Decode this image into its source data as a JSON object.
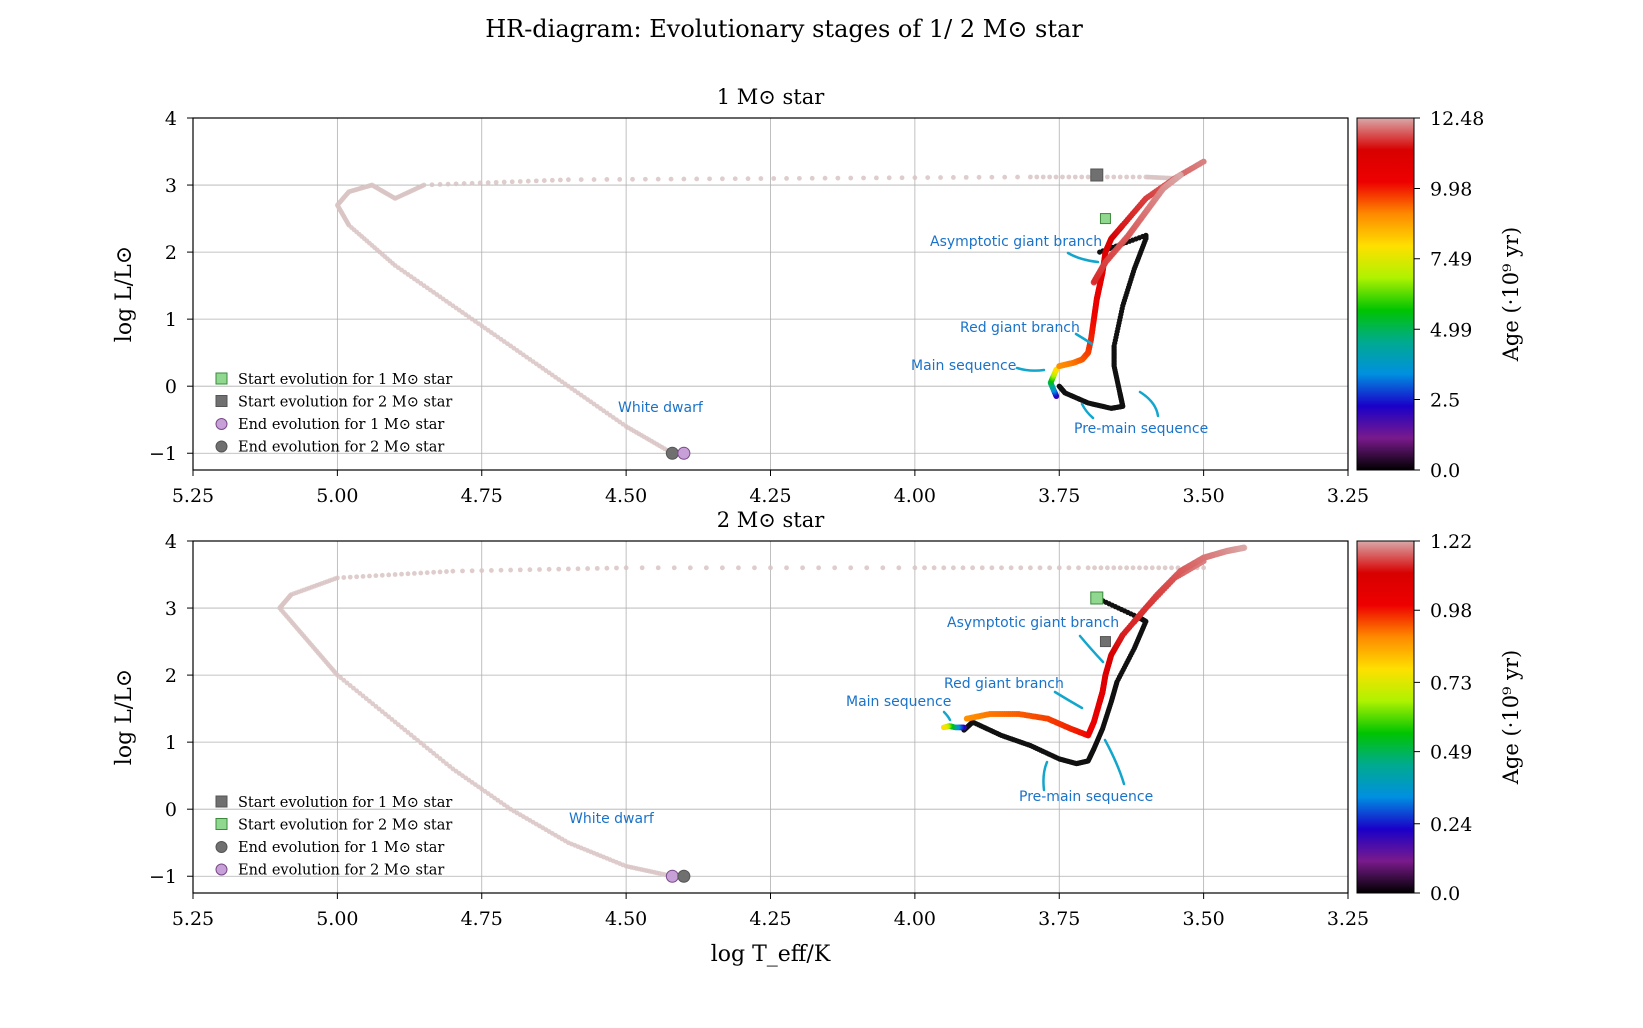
{
  "figure": {
    "suptitle": "HR-diagram: Evolutionary stages of 1/ 2 M⊙ star"
  },
  "colors": {
    "grid": "#b0b0b0",
    "annotation_text": "#1a73c9",
    "annotation_line": "#13a6cc",
    "post_agb_track": "#d9c4c4",
    "colormap": [
      "#000000",
      "#7a1a8c",
      "#1a00c8",
      "#0090e0",
      "#00aa90",
      "#00c400",
      "#aef200",
      "#ffe000",
      "#ff8a00",
      "#ee0000",
      "#d80000",
      "#d9a8a8"
    ]
  },
  "chart_data": [
    {
      "type": "scatter",
      "title": "1 M⊙ star",
      "xlabel": "",
      "ylabel": "log L/L⊙",
      "xlim": [
        5.25,
        3.25
      ],
      "ylim": [
        -1.25,
        4.0
      ],
      "x_ticks": [
        "5.25",
        "5.00",
        "4.75",
        "4.50",
        "4.25",
        "4.00",
        "3.75",
        "3.50",
        "3.25"
      ],
      "y_ticks": [
        "−1",
        "0",
        "1",
        "2",
        "3",
        "4"
      ],
      "grid": true,
      "legend_position": "lower-left",
      "colorbar": {
        "label": "Age (·10⁹ yr)",
        "ticks": [
          "0.0",
          "2.5",
          "4.99",
          "7.49",
          "9.98",
          "12.48"
        ],
        "max": 12.48
      },
      "legend": [
        {
          "label": "Start evolution for 1 M⊙ star",
          "marker": "square",
          "color": "#90d890",
          "edge": "#3a8a3a"
        },
        {
          "label": "Start evolution for 2 M⊙ star",
          "marker": "square",
          "color": "#707070",
          "edge": "#555555"
        },
        {
          "label": "End evolution for 1 M⊙ star",
          "marker": "circle",
          "color": "#c8a0d8",
          "edge": "#7a4a8a"
        },
        {
          "label": "End evolution for 2 M⊙ star",
          "marker": "circle",
          "color": "#707070",
          "edge": "#555555"
        }
      ],
      "annotations": [
        {
          "text": "Asymptotic giant branch"
        },
        {
          "text": "Red giant branch"
        },
        {
          "text": "Main sequence"
        },
        {
          "text": "White dwarf"
        },
        {
          "text": "Pre-main sequence"
        }
      ],
      "markers": {
        "start_1": [
          3.67,
          2.5
        ],
        "start_2": [
          3.685,
          3.15
        ],
        "end_1": [
          4.4,
          -1.0
        ],
        "end_2": [
          4.42,
          -1.0
        ]
      },
      "pre_main_sequence": [
        [
          3.68,
          2.0
        ],
        [
          3.6,
          2.25
        ],
        [
          3.6,
          2.2
        ],
        [
          3.62,
          1.75
        ],
        [
          3.64,
          1.2
        ],
        [
          3.655,
          0.6
        ],
        [
          3.655,
          0.3
        ],
        [
          3.645,
          -0.1
        ],
        [
          3.64,
          -0.3
        ],
        [
          3.66,
          -0.33
        ],
        [
          3.7,
          -0.25
        ],
        [
          3.74,
          -0.1
        ],
        [
          3.75,
          0.0
        ]
      ],
      "main_sequence": [
        [
          3.755,
          -0.15
        ],
        [
          3.76,
          -0.05
        ],
        [
          3.765,
          0.05
        ],
        [
          3.76,
          0.15
        ],
        [
          3.755,
          0.25
        ]
      ],
      "red_giant_branch": [
        [
          3.75,
          0.3
        ],
        [
          3.725,
          0.35
        ],
        [
          3.71,
          0.4
        ],
        [
          3.7,
          0.5
        ],
        [
          3.695,
          0.7
        ],
        [
          3.69,
          1.0
        ],
        [
          3.685,
          1.3
        ],
        [
          3.68,
          1.5
        ],
        [
          3.675,
          1.7
        ],
        [
          3.67,
          2.0
        ],
        [
          3.66,
          2.2
        ],
        [
          3.64,
          2.4
        ],
        [
          3.6,
          2.8
        ],
        [
          3.55,
          3.1
        ],
        [
          3.5,
          3.35
        ]
      ],
      "agb": [
        [
          3.69,
          1.55
        ],
        [
          3.67,
          1.85
        ],
        [
          3.63,
          2.25
        ],
        [
          3.6,
          2.6
        ],
        [
          3.57,
          2.95
        ],
        [
          3.54,
          3.15
        ]
      ],
      "post_agb": [
        [
          3.55,
          3.1
        ],
        [
          3.6,
          3.12
        ],
        [
          3.8,
          3.12
        ],
        [
          4.2,
          3.1
        ],
        [
          4.6,
          3.08
        ],
        [
          4.85,
          3.0
        ],
        [
          4.9,
          2.8
        ],
        [
          4.94,
          3.0
        ],
        [
          4.98,
          2.9
        ],
        [
          5.0,
          2.7
        ],
        [
          4.98,
          2.4
        ],
        [
          4.9,
          1.8
        ],
        [
          4.8,
          1.2
        ],
        [
          4.7,
          0.6
        ],
        [
          4.6,
          0.0
        ],
        [
          4.5,
          -0.6
        ],
        [
          4.42,
          -1.0
        ]
      ]
    },
    {
      "type": "scatter",
      "title": "2 M⊙ star",
      "xlabel": "log T_eff/K",
      "ylabel": "log L/L⊙",
      "xlim": [
        5.25,
        3.25
      ],
      "ylim": [
        -1.25,
        4.0
      ],
      "x_ticks": [
        "5.25",
        "5.00",
        "4.75",
        "4.50",
        "4.25",
        "4.00",
        "3.75",
        "3.50",
        "3.25"
      ],
      "y_ticks": [
        "−1",
        "0",
        "1",
        "2",
        "3",
        "4"
      ],
      "grid": true,
      "legend_position": "lower-left",
      "colorbar": {
        "label": "Age (·10⁹ yr)",
        "ticks": [
          "0.0",
          "0.24",
          "0.49",
          "0.73",
          "0.98",
          "1.22"
        ],
        "max": 1.22
      },
      "legend": [
        {
          "label": "Start evolution for 1 M⊙ star",
          "marker": "square",
          "color": "#707070",
          "edge": "#555555"
        },
        {
          "label": "Start evolution for 2 M⊙ star",
          "marker": "square",
          "color": "#90d890",
          "edge": "#3a8a3a"
        },
        {
          "label": "End evolution for 1 M⊙ star",
          "marker": "circle",
          "color": "#707070",
          "edge": "#555555"
        },
        {
          "label": "End evolution for 2 M⊙ star",
          "marker": "circle",
          "color": "#c8a0d8",
          "edge": "#7a4a8a"
        }
      ],
      "annotations": [
        {
          "text": "Asymptotic giant branch"
        },
        {
          "text": "Red giant branch"
        },
        {
          "text": "Main sequence"
        },
        {
          "text": "White dwarf"
        },
        {
          "text": "Pre-main sequence"
        }
      ],
      "markers": {
        "start_1": [
          3.67,
          2.5
        ],
        "start_2": [
          3.685,
          3.15
        ],
        "end_1": [
          4.4,
          -1.0
        ],
        "end_2": [
          4.42,
          -1.0
        ]
      },
      "pre_main_sequence": [
        [
          3.685,
          3.15
        ],
        [
          3.61,
          2.85
        ],
        [
          3.6,
          2.8
        ],
        [
          3.62,
          2.4
        ],
        [
          3.65,
          1.9
        ],
        [
          3.66,
          1.6
        ],
        [
          3.675,
          1.2
        ],
        [
          3.69,
          0.9
        ],
        [
          3.7,
          0.72
        ],
        [
          3.72,
          0.68
        ],
        [
          3.75,
          0.75
        ],
        [
          3.8,
          0.95
        ],
        [
          3.85,
          1.1
        ],
        [
          3.9,
          1.3
        ],
        [
          3.915,
          1.18
        ]
      ],
      "main_sequence": [
        [
          3.915,
          1.22
        ],
        [
          3.93,
          1.22
        ],
        [
          3.94,
          1.24
        ],
        [
          3.95,
          1.22
        ]
      ],
      "red_giant_branch": [
        [
          3.91,
          1.35
        ],
        [
          3.87,
          1.42
        ],
        [
          3.82,
          1.42
        ],
        [
          3.77,
          1.35
        ],
        [
          3.73,
          1.2
        ],
        [
          3.7,
          1.1
        ],
        [
          3.69,
          1.3
        ],
        [
          3.68,
          1.6
        ],
        [
          3.675,
          1.75
        ],
        [
          3.67,
          2.0
        ],
        [
          3.66,
          2.3
        ],
        [
          3.64,
          2.6
        ],
        [
          3.6,
          3.0
        ],
        [
          3.55,
          3.45
        ],
        [
          3.5,
          3.7
        ]
      ],
      "agb": [
        [
          3.62,
          2.8
        ],
        [
          3.58,
          3.2
        ],
        [
          3.54,
          3.55
        ],
        [
          3.5,
          3.75
        ],
        [
          3.46,
          3.85
        ],
        [
          3.43,
          3.9
        ]
      ],
      "post_agb": [
        [
          3.5,
          3.6
        ],
        [
          3.7,
          3.6
        ],
        [
          4.0,
          3.6
        ],
        [
          4.5,
          3.6
        ],
        [
          4.8,
          3.55
        ],
        [
          5.0,
          3.45
        ],
        [
          5.08,
          3.2
        ],
        [
          5.1,
          3.0
        ],
        [
          5.05,
          2.5
        ],
        [
          5.0,
          2.0
        ],
        [
          4.9,
          1.3
        ],
        [
          4.8,
          0.6
        ],
        [
          4.7,
          0.0
        ],
        [
          4.6,
          -0.5
        ],
        [
          4.5,
          -0.85
        ],
        [
          4.42,
          -1.0
        ]
      ]
    }
  ]
}
